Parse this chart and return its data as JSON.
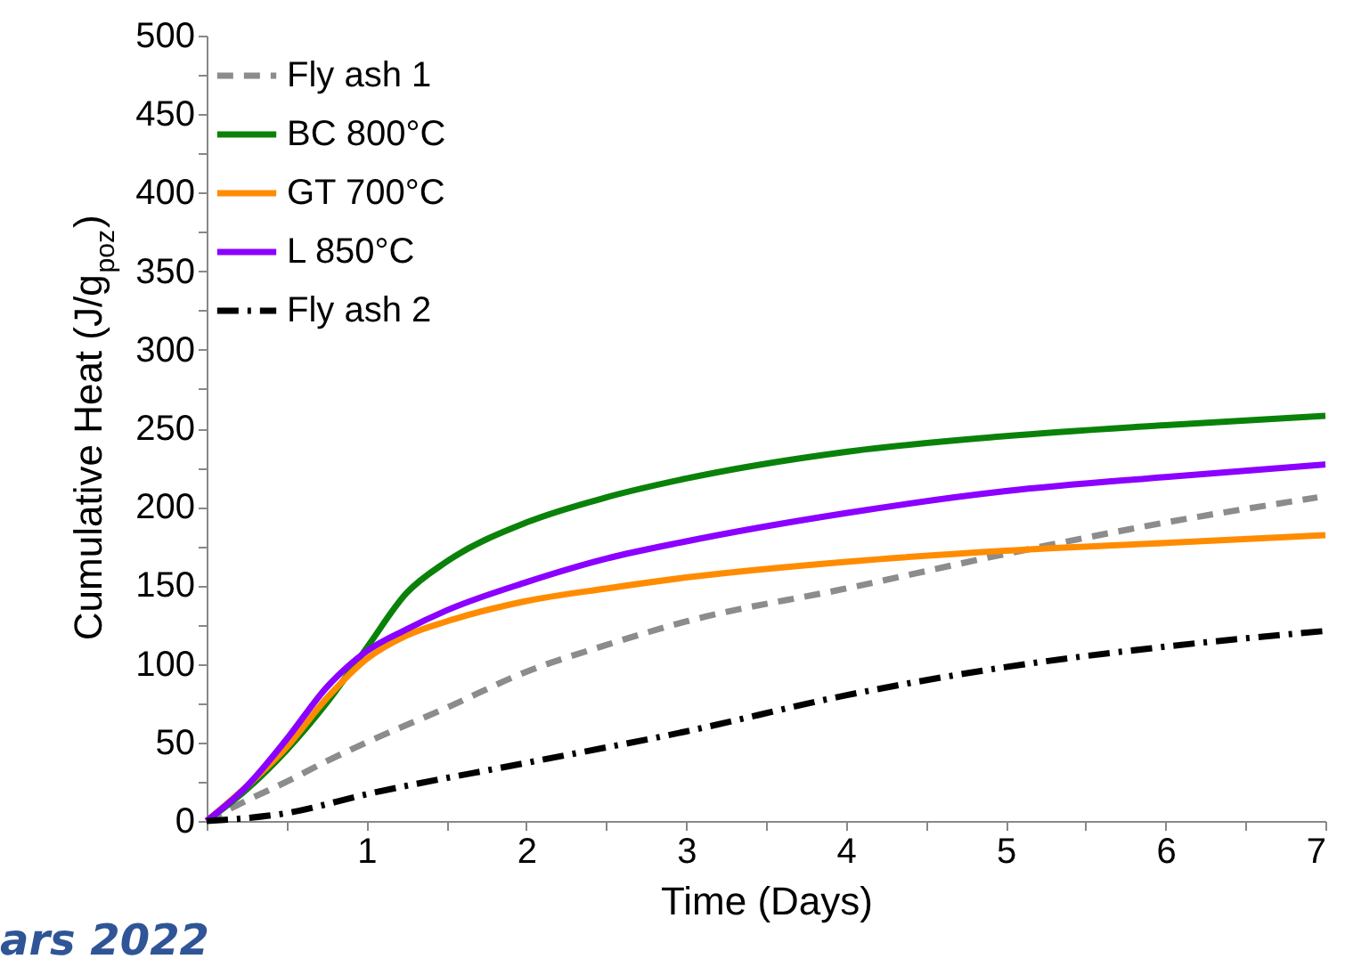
{
  "chart_data": {
    "type": "line",
    "xlabel": "Time (Days)",
    "ylabel": "Cumulative Heat (J/g$_{poz}$)",
    "xlim": [
      0,
      7
    ],
    "ylim": [
      0,
      500
    ],
    "xticks": [
      {
        "value": 0,
        "label": null
      },
      {
        "value": 0.5,
        "label": null
      },
      1,
      {
        "value": 1.5,
        "label": null
      },
      2,
      {
        "value": 2.5,
        "label": null
      },
      3,
      {
        "value": 3.5,
        "label": null
      },
      4,
      {
        "value": 4.5,
        "label": null
      },
      5,
      {
        "value": 5.5,
        "label": null
      },
      6,
      {
        "value": 6.5,
        "label": null
      },
      7
    ],
    "yticks": [
      0,
      {
        "value": 25,
        "label": null
      },
      50,
      {
        "value": 75,
        "label": null
      },
      100,
      {
        "value": 125,
        "label": null
      },
      150,
      {
        "value": 175,
        "label": null
      },
      200,
      {
        "value": 225,
        "label": null
      },
      250,
      {
        "value": 275,
        "label": null
      },
      300,
      {
        "value": 325,
        "label": null
      },
      350,
      {
        "value": 375,
        "label": null
      },
      400,
      {
        "value": 425,
        "label": null
      },
      450,
      {
        "value": 475,
        "label": null
      },
      500
    ],
    "grid": false,
    "legend": "top left",
    "marker": "none",
    "annotations": [
      "ars 2022"
    ],
    "series": [
      {
        "name": "Fly ash 1",
        "color": "#8c8c8c",
        "line_style": "dashed",
        "x": [
          0,
          0.25,
          0.5,
          0.75,
          1,
          1.5,
          2,
          2.5,
          3,
          4,
          5,
          6,
          6.95
        ],
        "values": [
          0,
          13,
          25,
          38,
          50,
          72,
          95,
          112,
          127,
          148,
          170,
          190,
          206
        ]
      },
      {
        "name": "BC 800°C",
        "color": "#0a820a",
        "line_style": "solid",
        "x": [
          0,
          0.25,
          0.5,
          0.75,
          1,
          1.25,
          1.5,
          2,
          2.5,
          3,
          4,
          5,
          6,
          7
        ],
        "values": [
          0,
          20,
          45,
          75,
          110,
          145,
          165,
          190,
          206,
          218,
          235,
          245,
          252,
          258
        ]
      },
      {
        "name": "GT 700°C",
        "color": "#ff8c00",
        "line_style": "solid",
        "x": [
          0,
          0.25,
          0.5,
          0.75,
          1,
          1.25,
          1.5,
          2,
          2.5,
          3,
          4,
          5,
          6,
          7
        ],
        "values": [
          0,
          22,
          47,
          78,
          103,
          118,
          127,
          140,
          148,
          155,
          165,
          172,
          177,
          182
        ]
      },
      {
        "name": "L 850°C",
        "color": "#8b00ff",
        "line_style": "solid",
        "x": [
          0,
          0.25,
          0.5,
          0.75,
          1,
          1.25,
          1.5,
          2,
          2.5,
          3,
          4,
          5,
          6,
          7
        ],
        "values": [
          0,
          22,
          52,
          85,
          108,
          122,
          134,
          152,
          167,
          178,
          196,
          210,
          219,
          227
        ]
      },
      {
        "name": "Fly ash 2",
        "color": "#000000",
        "line_style": "dashdot",
        "x": [
          0,
          0.5,
          1,
          2,
          3,
          4,
          5,
          6,
          7
        ],
        "values": [
          0,
          5,
          17,
          37,
          57,
          80,
          98,
          111,
          121
        ]
      }
    ]
  }
}
